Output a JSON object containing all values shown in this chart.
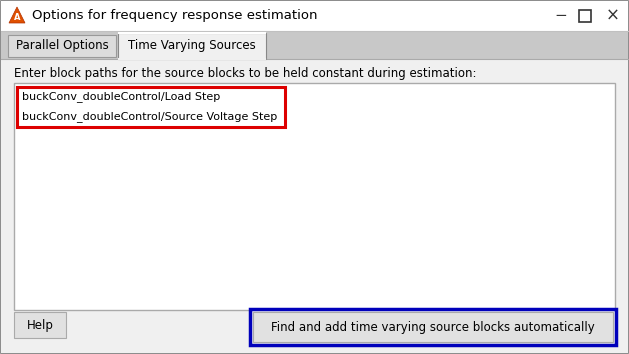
{
  "title": "Options for frequency response estimation",
  "tab1": "Parallel Options",
  "tab2": "Time Varying Sources",
  "instruction": "Enter block paths for the source blocks to be held constant during estimation:",
  "text_line1": "buckConv_doubleControl/Load Step",
  "text_line2": "buckConv_doubleControl/Source Voltage Step",
  "button_text": "Find and add time varying source blocks automatically",
  "help_text": "Help",
  "bg_color": "#F0F0F0",
  "title_bar_color": "#FFFFFF",
  "tab_bg_color": "#C8C8C8",
  "tab_active_color": "#F0F0F0",
  "content_color": "#F0F0F0",
  "white": "#FFFFFF",
  "red_box_color": "#DD0000",
  "blue_box_color": "#0000BB",
  "text_color": "#000000",
  "border_color": "#999999",
  "button_bg": "#E1E1E1"
}
